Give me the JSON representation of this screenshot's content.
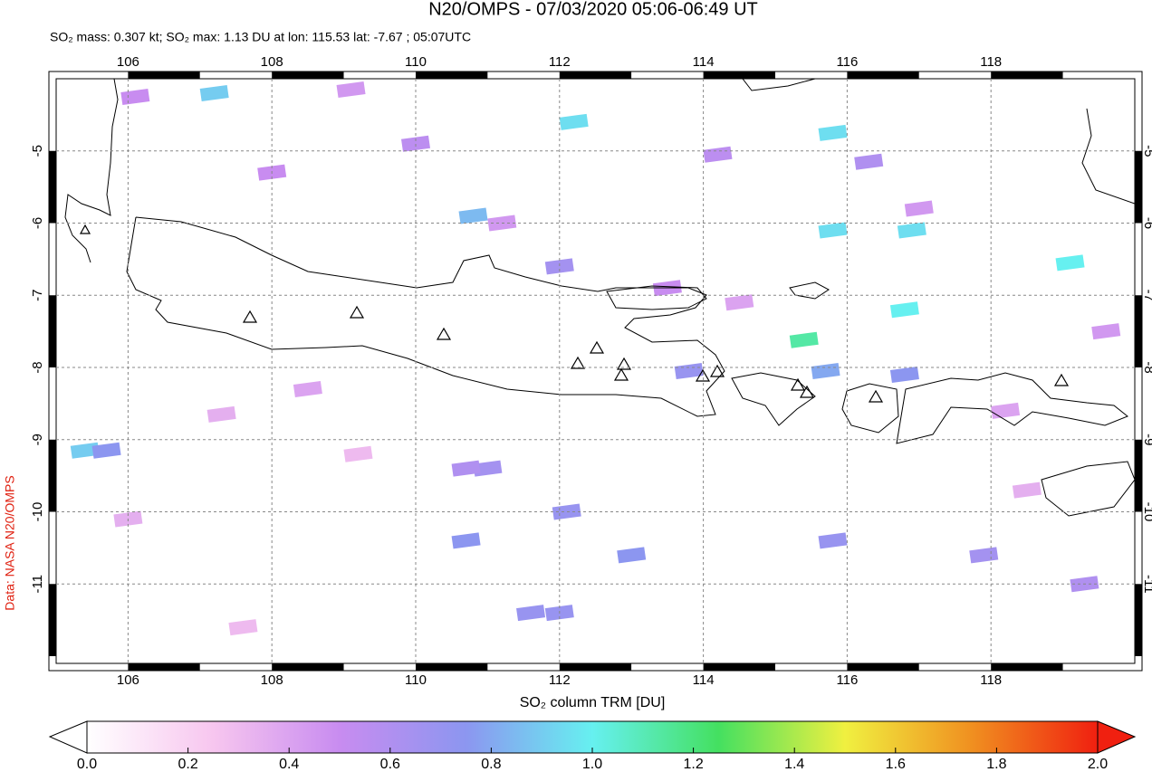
{
  "chart_data": {
    "type": "map",
    "title": "N20/OMPS - 07/03/2020 05:06-06:49 UT",
    "subtitle": "SO₂ mass: 0.307 kt; SO₂ max: 1.13 DU at lon: 115.53 lat: -7.67 ; 05:07UTC",
    "credit": "Data: NASA N20/OMPS",
    "xlim": [
      105,
      120
    ],
    "ylim": [
      -12.1,
      -4
    ],
    "xticks": [
      106,
      108,
      110,
      112,
      114,
      116,
      118
    ],
    "yticks": [
      -5,
      -6,
      -7,
      -8,
      -9,
      -10,
      -11
    ],
    "grid": true,
    "pixels": {
      "lon": [
        107.2,
        112.2,
        115.8,
        110.8,
        112.0,
        105.4,
        105.7,
        116.9,
        115.8,
        119.1,
        116.8,
        115.4,
        115.7,
        113.8,
        116.8,
        111.0,
        110.7,
        112.1,
        110.7,
        113.0,
        112.0,
        111.6,
        115.8,
        117.9,
        119.3,
        106.1,
        109.1,
        110.0,
        108.0,
        114.2,
        116.3,
        117.0,
        108.5,
        107.3,
        111.2,
        113.5,
        114.5,
        109.2,
        106.0,
        107.6,
        118.2,
        119.6,
        118.5
      ],
      "lat": [
        -4.2,
        -4.6,
        -4.75,
        -5.9,
        -6.6,
        -9.15,
        -9.15,
        -6.1,
        -6.1,
        -6.55,
        -7.2,
        -7.62,
        -8.05,
        -8.05,
        -8.1,
        -9.4,
        -9.4,
        -10.0,
        -10.4,
        -10.6,
        -11.4,
        -11.4,
        -10.4,
        -10.6,
        -11.0,
        -4.25,
        -4.15,
        -4.9,
        -5.3,
        -5.05,
        -5.15,
        -5.8,
        -8.3,
        -8.65,
        -6.0,
        -6.9,
        -7.1,
        -9.2,
        -10.1,
        -11.6,
        -8.6,
        -7.5,
        -9.7
      ],
      "values": [
        0.9,
        0.95,
        0.95,
        0.85,
        0.65,
        0.9,
        0.75,
        0.95,
        0.95,
        1.0,
        1.0,
        1.13,
        0.8,
        0.7,
        0.75,
        0.65,
        0.6,
        0.7,
        0.75,
        0.75,
        0.7,
        0.7,
        0.7,
        0.65,
        0.6,
        0.5,
        0.45,
        0.55,
        0.5,
        0.55,
        0.6,
        0.45,
        0.4,
        0.35,
        0.45,
        0.5,
        0.4,
        0.3,
        0.35,
        0.3,
        0.4,
        0.45,
        0.35
      ]
    },
    "colorbar": {
      "label": "SO₂ column TRM [DU]",
      "lim": [
        0,
        2
      ],
      "ticks": [
        {
          "value": 0,
          "label": "0.0"
        },
        0.2,
        0.4,
        0.6,
        0.8,
        {
          "value": 1,
          "label": "1.0"
        },
        1.2,
        1.4,
        1.6,
        1.8,
        {
          "value": 2,
          "label": "2.0"
        }
      ],
      "colors": [
        "#ffffff",
        "#f7c6ef",
        "#c88cf0",
        "#8c96f0",
        "#66f0f0",
        "#44e060",
        "#f0f040",
        "#f09020",
        "#f02010"
      ]
    }
  }
}
